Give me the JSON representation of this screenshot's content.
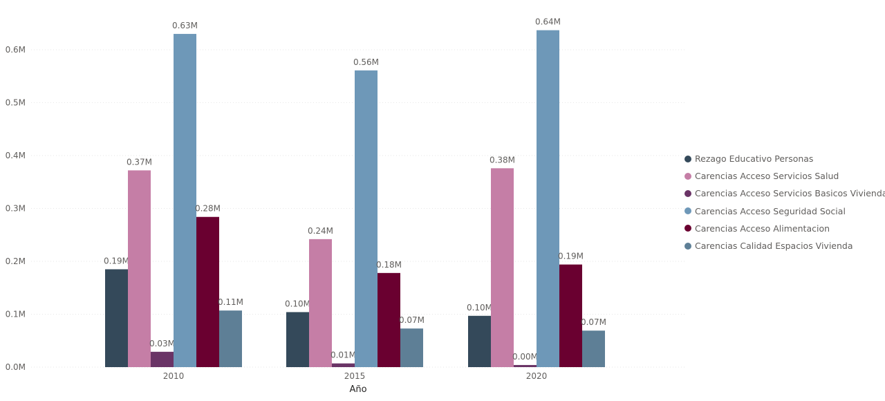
{
  "chart_data": {
    "type": "bar",
    "title": "",
    "xlabel": "Año",
    "ylabel": "",
    "categories": [
      "2010",
      "2015",
      "2020"
    ],
    "ylim": [
      0,
      0.65
    ],
    "yticks": [
      {
        "value": 0.0,
        "label": "0.0M"
      },
      {
        "value": 0.1,
        "label": "0.1M"
      },
      {
        "value": 0.2,
        "label": "0.2M"
      },
      {
        "value": 0.3,
        "label": "0.3M"
      },
      {
        "value": 0.4,
        "label": "0.4M"
      },
      {
        "value": 0.5,
        "label": "0.5M"
      },
      {
        "value": 0.6,
        "label": "0.6M"
      }
    ],
    "grid": true,
    "legend_position": "right",
    "series": [
      {
        "name": "Rezago Educativo Personas",
        "color": "#34495a",
        "values": [
          0.185,
          0.104,
          0.097
        ],
        "labels": [
          "0.19M",
          "0.10M",
          "0.10M"
        ]
      },
      {
        "name": "Carencias Acceso Servicios Salud",
        "color": "#c57ea6",
        "values": [
          0.372,
          0.242,
          0.376
        ],
        "labels": [
          "0.37M",
          "0.24M",
          "0.38M"
        ]
      },
      {
        "name": "Carencias Acceso Servicios Basicos Vivienda",
        "color": "#6a3466",
        "values": [
          0.029,
          0.007,
          0.004
        ],
        "labels": [
          "0.03M",
          "0.01M",
          "0.00M"
        ]
      },
      {
        "name": "Carencias Acceso Seguridad Social",
        "color": "#6e98b8",
        "values": [
          0.63,
          0.561,
          0.637
        ],
        "labels": [
          "0.63M",
          "0.56M",
          "0.64M"
        ]
      },
      {
        "name": "Carencias Acceso Alimentacion",
        "color": "#6a0030",
        "values": [
          0.284,
          0.178,
          0.194
        ],
        "labels": [
          "0.28M",
          "0.18M",
          "0.19M"
        ]
      },
      {
        "name": "Carencias Calidad Espacios Vivienda",
        "color": "#5e7f96",
        "values": [
          0.107,
          0.073,
          0.069
        ],
        "labels": [
          "0.11M",
          "0.07M",
          "0.07M"
        ]
      }
    ]
  }
}
